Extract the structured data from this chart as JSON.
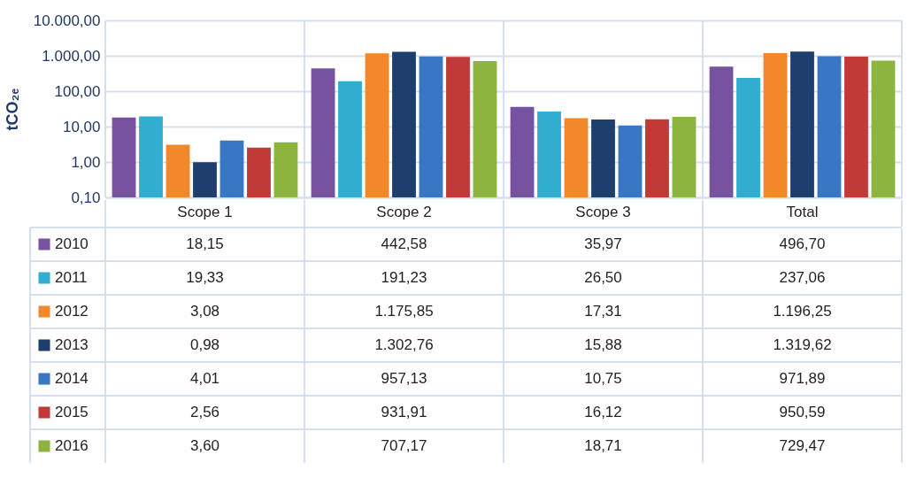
{
  "chart_data": {
    "type": "bar",
    "ylabel": "tCO₂ₑ",
    "categories": [
      "Scope 1",
      "Scope 2",
      "Scope 3",
      "Total"
    ],
    "log": true,
    "ylim": [
      0.1,
      10000
    ],
    "yticks": [
      {
        "value": 0.1,
        "label": "0,10"
      },
      {
        "value": 1,
        "label": "1,00"
      },
      {
        "value": 10,
        "label": "10,00"
      },
      {
        "value": 100,
        "label": "100,00"
      },
      {
        "value": 1000,
        "label": "1.000,00"
      },
      {
        "value": 10000,
        "label": "10.000,00"
      }
    ],
    "grid": true,
    "legend": "bottom left",
    "series": [
      {
        "name": "2010",
        "color": "#7652a0",
        "values": [
          18.15,
          442.58,
          35.97,
          496.7
        ],
        "value_labels": [
          "18,15",
          "442,58",
          "35,97",
          "496,70"
        ]
      },
      {
        "name": "2011",
        "color": "#31aecf",
        "values": [
          19.33,
          191.23,
          26.5,
          237.06
        ],
        "value_labels": [
          "19,33",
          "191,23",
          "26,50",
          "237,06"
        ]
      },
      {
        "name": "2012",
        "color": "#f3882a",
        "values": [
          3.08,
          1175.85,
          17.31,
          1196.25
        ],
        "value_labels": [
          "3,08",
          "1.175,85",
          "17,31",
          "1.196,25"
        ]
      },
      {
        "name": "2013",
        "color": "#1e3f6d",
        "values": [
          0.98,
          1302.76,
          15.88,
          1319.62
        ],
        "value_labels": [
          "0,98",
          "1.302,76",
          "15,88",
          "1.319,62"
        ]
      },
      {
        "name": "2014",
        "color": "#3877c4",
        "values": [
          4.01,
          957.13,
          10.75,
          971.89
        ],
        "value_labels": [
          "4,01",
          "957,13",
          "10,75",
          "971,89"
        ]
      },
      {
        "name": "2015",
        "color": "#c03a38",
        "values": [
          2.56,
          931.91,
          16.12,
          950.59
        ],
        "value_labels": [
          "2,56",
          "931,91",
          "16,12",
          "950,59"
        ]
      },
      {
        "name": "2016",
        "color": "#8db43f",
        "values": [
          3.6,
          707.17,
          18.71,
          729.47
        ],
        "value_labels": [
          "3,60",
          "707,17",
          "18,71",
          "729,47"
        ]
      }
    ]
  }
}
